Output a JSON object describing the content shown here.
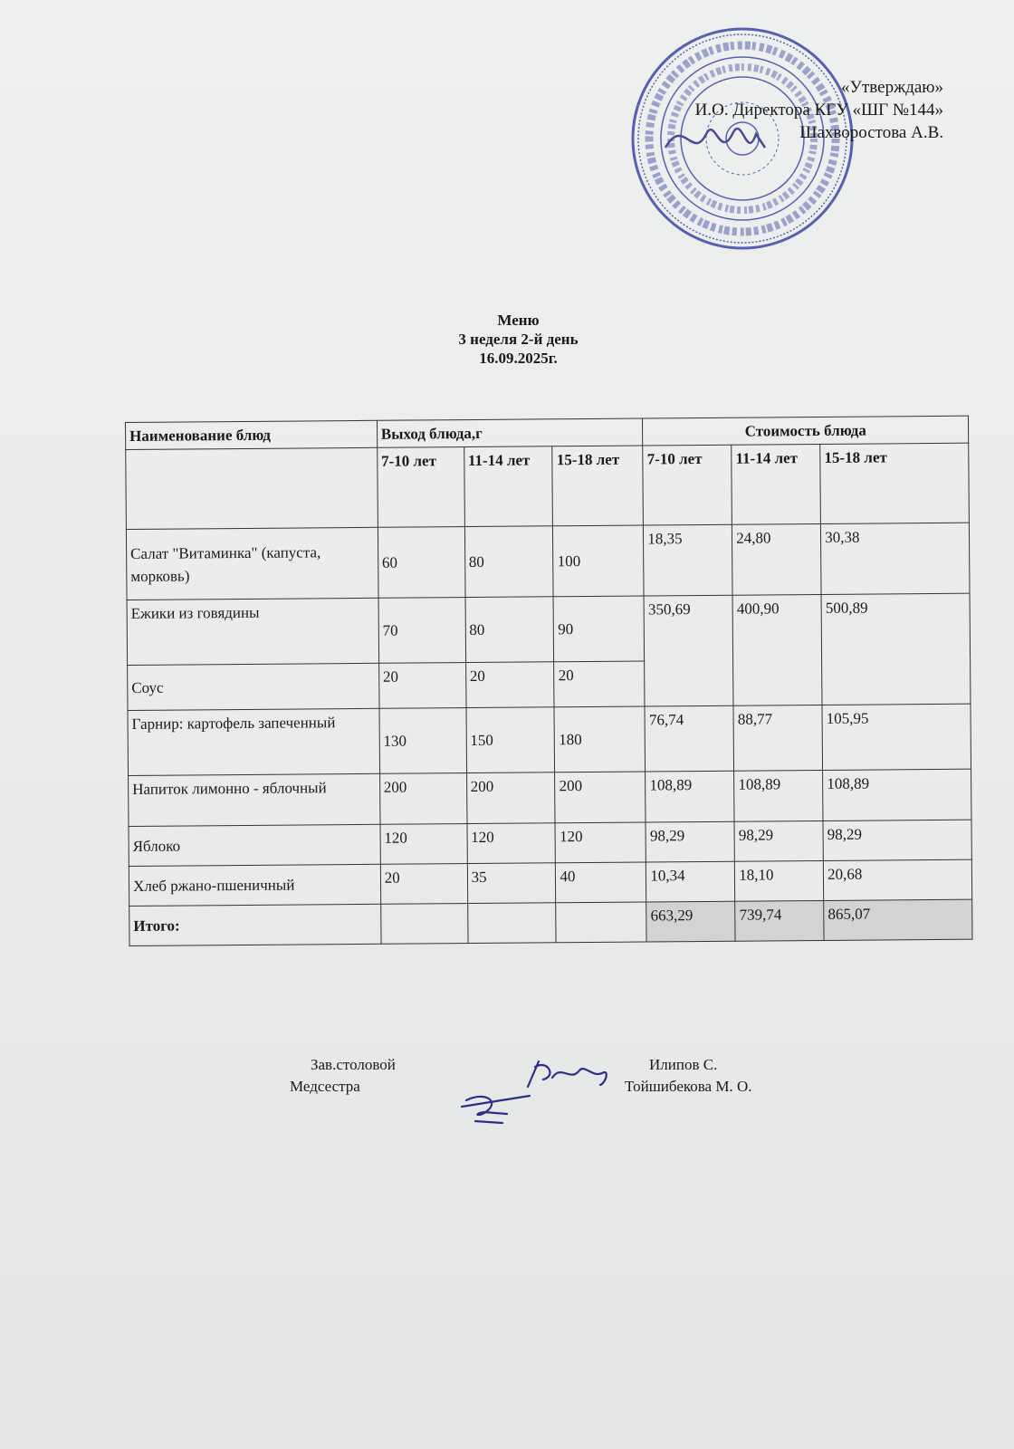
{
  "approval": {
    "line1": "«Утверждаю»",
    "line2": "И.О. Директора КГУ «ШГ №144»",
    "line3": "Шахворостова А.В."
  },
  "stamp": {
    "outer_text": "ҚАЗАҚСТАН РЕСПУБЛИКАСЫ АЛМАТЫ ҚАЛАСЫ БІЛІМ БАСҚАРМАСЫНЫҢ",
    "inner_text": "№144 МЕКТЕП-ГИМНАЗИЯ КОММУНАЛДЫҚ МЕМЛЕКЕТТІК МЕКЕМЕСІ",
    "bin": "БСН/БИН 990440002778",
    "color": "#3b48a8"
  },
  "header": {
    "title": "Меню",
    "subtitle": "3 неделя 2-й день",
    "date": "16.09.2025г."
  },
  "table": {
    "col_name": "Наименование блюд",
    "col_yield": "Выход блюда,г",
    "col_cost": "Стоимость блюда",
    "ages": [
      "7-10 лет",
      "11-14 лет",
      "15-18 лет"
    ],
    "rows": [
      {
        "name": "Салат \"Витаминка\" (капуста, морковь)",
        "yield": [
          "60",
          "80",
          "100"
        ],
        "cost": [
          "18,35",
          "24,80",
          "30,38"
        ]
      },
      {
        "name": "Ежики из говядины",
        "yield": [
          "70",
          "80",
          "90"
        ],
        "cost": [
          "350,69",
          "400,90",
          "500,89"
        ]
      },
      {
        "name": "Соус",
        "yield": [
          "20",
          "20",
          "20"
        ]
      },
      {
        "name": "Гарнир:  картофель запеченный",
        "yield": [
          "130",
          "150",
          "180"
        ],
        "cost": [
          "76,74",
          "88,77",
          "105,95"
        ]
      },
      {
        "name": "Напиток лимонно - яблочный",
        "yield": [
          "200",
          "200",
          "200"
        ],
        "cost": [
          "108,89",
          "108,89",
          "108,89"
        ]
      },
      {
        "name": "Яблоко",
        "yield": [
          "120",
          "120",
          "120"
        ],
        "cost": [
          "98,29",
          "98,29",
          "98,29"
        ]
      },
      {
        "name": "Хлеб ржано-пшеничный",
        "yield": [
          "20",
          "35",
          "40"
        ],
        "cost": [
          "10,34",
          "18,10",
          "20,68"
        ]
      }
    ],
    "total_label": "Итого:",
    "total_cost": [
      "663,29",
      "739,74",
      "865,07"
    ]
  },
  "signatures": {
    "role1": "Зав.столовой",
    "role2": "Медсестра",
    "name1": "Илипов С.",
    "name2": "Тойшибекова М. О."
  },
  "ink_color": "#2b2f8c"
}
